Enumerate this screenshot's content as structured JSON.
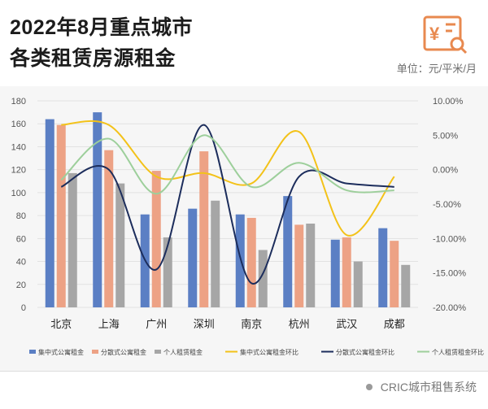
{
  "title_line1": "2022年8月重点城市",
  "title_line2": "各类租赁房源租金",
  "unit": "单位：元/平米/月",
  "footer_text": "CRIC城市租售系统",
  "chart_data": {
    "type": "bar+line",
    "categories": [
      "北京",
      "上海",
      "广州",
      "深圳",
      "南京",
      "杭州",
      "武汉",
      "成都"
    ],
    "bar_series": [
      {
        "name": "集中式公寓租金",
        "color": "#5b7fc4",
        "values": [
          164,
          170,
          81,
          86,
          81,
          97,
          59,
          69
        ]
      },
      {
        "name": "分散式公寓租金",
        "color": "#eda285",
        "values": [
          159,
          137,
          119,
          136,
          78,
          72,
          61,
          58
        ]
      },
      {
        "name": "个人租赁租金",
        "color": "#a6a6a6",
        "values": [
          117,
          108,
          61,
          93,
          50,
          73,
          40,
          37
        ]
      }
    ],
    "line_series": [
      {
        "name": "集中式公寓租金环比",
        "color": "#f3c219",
        "values": [
          6.5,
          6.5,
          -1.0,
          -0.5,
          -2.0,
          5.5,
          -9.5,
          -1.0
        ]
      },
      {
        "name": "分散式公寓租金环比",
        "color": "#1c2d5c",
        "values": [
          -2.5,
          0.0,
          -14.5,
          6.5,
          -16.5,
          -1.0,
          -2.0,
          -2.5
        ]
      },
      {
        "name": "个人租赁租金环比",
        "color": "#9dcf9b",
        "values": [
          -1.5,
          4.5,
          -3.5,
          5.0,
          -2.5,
          1.0,
          -3.0,
          -3.0
        ]
      }
    ],
    "y_left": {
      "min": 0,
      "max": 180,
      "step": 20,
      "ticks": [
        "0",
        "20",
        "40",
        "60",
        "80",
        "100",
        "120",
        "140",
        "160",
        "180"
      ]
    },
    "y_right": {
      "min": -20,
      "max": 10,
      "step": 5,
      "ticks": [
        "-20.00%",
        "-15.00%",
        "-10.00%",
        "-5.00%",
        "0.00%",
        "5.00%",
        "10.00%"
      ]
    },
    "legend_position": "bottom"
  }
}
